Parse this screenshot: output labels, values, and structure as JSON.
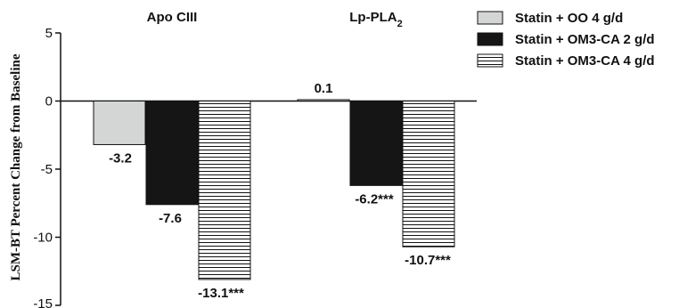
{
  "chart_data": {
    "type": "bar",
    "categories": [
      "Apo CIII",
      "Lp-PLA2"
    ],
    "category_label_parts": [
      {
        "main": "Apo CIII",
        "sub": ""
      },
      {
        "main": "Lp-PLA",
        "sub": "2"
      }
    ],
    "series": [
      {
        "name": "Statin + OO 4 g/d",
        "values": [
          -3.2,
          0.1
        ],
        "labels": [
          "-3.2",
          "0.1"
        ],
        "fill": "light-gray"
      },
      {
        "name": "Statin + OM3-CA 2 g/d",
        "values": [
          -7.6,
          -6.2
        ],
        "labels": [
          "-7.6",
          "-6.2***"
        ],
        "fill": "black"
      },
      {
        "name": "Statin + OM3-CA 4 g/d",
        "values": [
          -13.1,
          -10.7
        ],
        "labels": [
          "-13.1***",
          "-10.7***"
        ],
        "fill": "horizontal-lines"
      }
    ],
    "ylabel": "LSM-BT Percent Change from Baseline",
    "ylim": [
      -15,
      5
    ],
    "yticks": [
      5,
      0,
      -5,
      -10,
      -15
    ],
    "legend_position": "top-right",
    "grid": false,
    "colors": {
      "light": "#d4d6d6",
      "dark": "#151515",
      "stroke": "#111111"
    }
  }
}
